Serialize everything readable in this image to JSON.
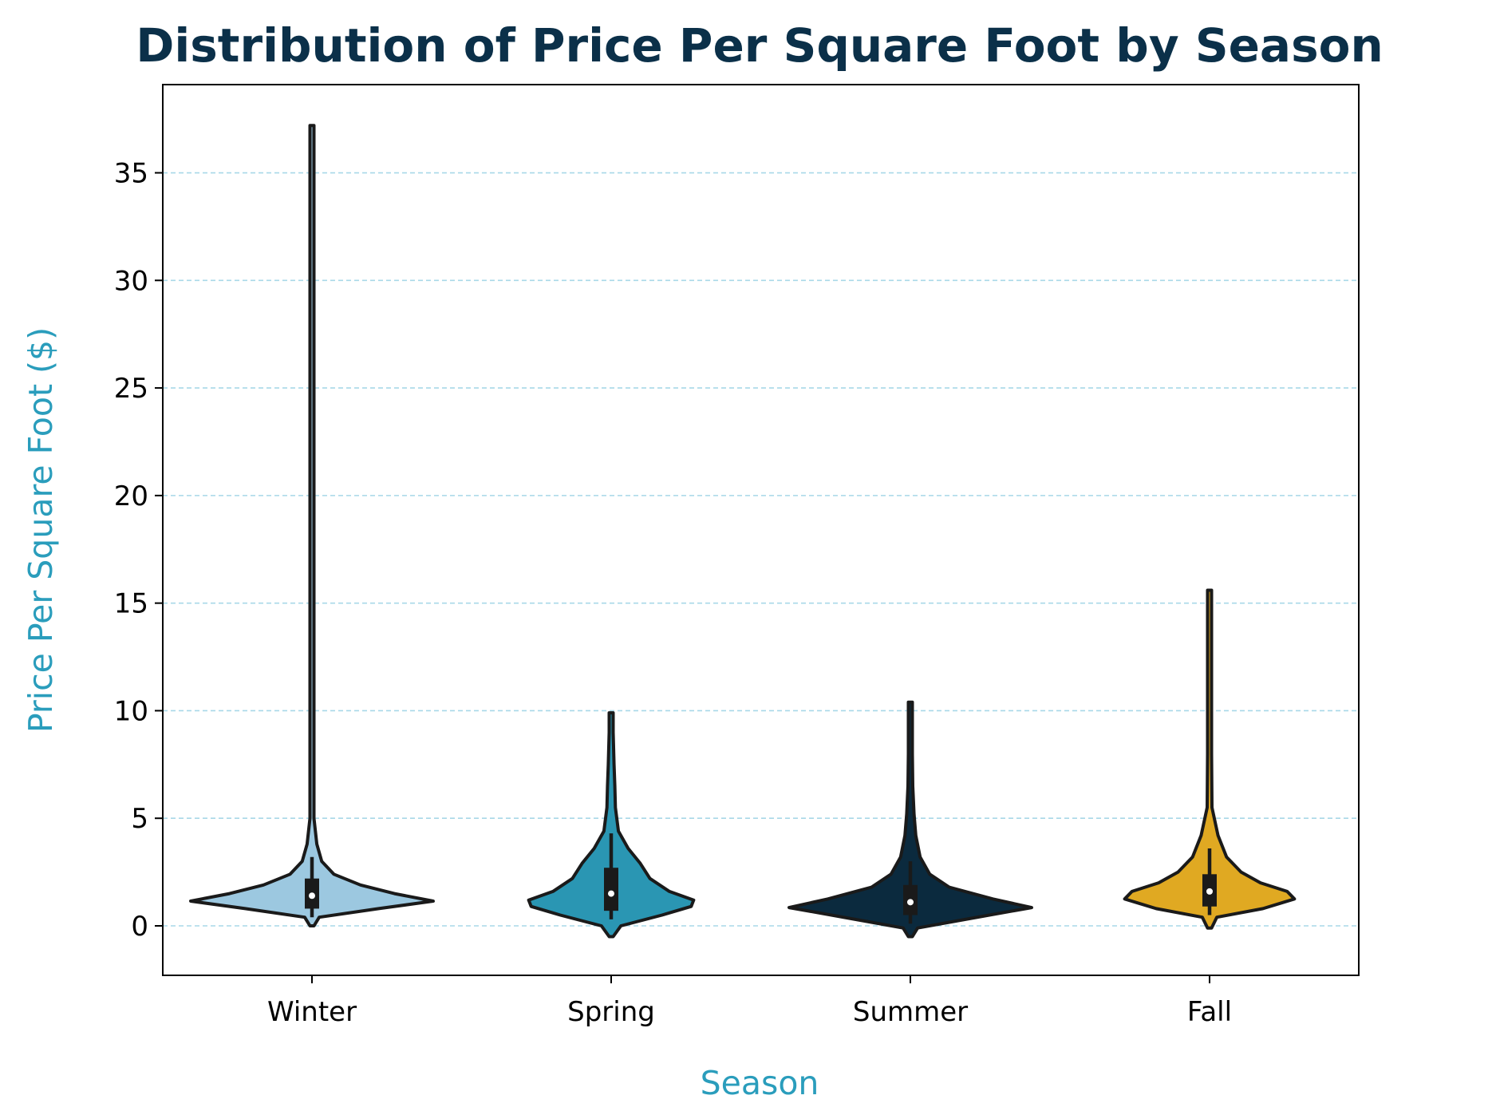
{
  "chart_data": {
    "type": "violin",
    "title": "Distribution of Price Per Square Foot by Season",
    "xlabel": "Season",
    "ylabel": "Price Per Square Foot ($)",
    "categories": [
      "Winter",
      "Spring",
      "Summer",
      "Fall"
    ],
    "ylim": [
      -2.3,
      39.1
    ],
    "yticks": [
      0,
      5,
      10,
      15,
      20,
      25,
      30,
      35
    ],
    "grid": "y, dashed",
    "colors": {
      "title": "#0B3049",
      "axis_label": "#2A9DBC",
      "grid": "#A8D8E8",
      "outline": "#1A1A1A"
    },
    "series": [
      {
        "name": "Winter",
        "color": "#9CC8E0",
        "min": 0.0,
        "max": 37.2,
        "q1": 0.8,
        "median": 1.4,
        "q3": 2.2,
        "whisker_low": 0.4,
        "whisker_high": 3.2,
        "density": [
          [
            0.0,
            0.0
          ],
          [
            0.4,
            0.06
          ],
          [
            0.8,
            0.55
          ],
          [
            1.15,
            1.0
          ],
          [
            1.5,
            0.68
          ],
          [
            1.9,
            0.4
          ],
          [
            2.4,
            0.18
          ],
          [
            3.0,
            0.08
          ],
          [
            3.8,
            0.04
          ],
          [
            5.0,
            0.015
          ],
          [
            7.0,
            0.008
          ],
          [
            12.0,
            0.007
          ],
          [
            20.0,
            0.006
          ],
          [
            30.0,
            0.006
          ],
          [
            37.2,
            0.004
          ]
        ]
      },
      {
        "name": "Spring",
        "color": "#2A96B3",
        "min": -0.5,
        "max": 9.9,
        "q1": 0.7,
        "median": 1.5,
        "q3": 2.7,
        "whisker_low": 0.3,
        "whisker_high": 4.3,
        "density": [
          [
            -0.5,
            0.0
          ],
          [
            0.0,
            0.08
          ],
          [
            0.5,
            0.42
          ],
          [
            0.9,
            0.66
          ],
          [
            1.2,
            0.68
          ],
          [
            1.6,
            0.48
          ],
          [
            2.2,
            0.32
          ],
          [
            2.9,
            0.24
          ],
          [
            3.6,
            0.14
          ],
          [
            4.4,
            0.06
          ],
          [
            5.5,
            0.035
          ],
          [
            6.5,
            0.03
          ],
          [
            7.5,
            0.024
          ],
          [
            9.0,
            0.014
          ],
          [
            9.9,
            0.006
          ]
        ]
      },
      {
        "name": "Summer",
        "color": "#0B2A3E",
        "min": -0.5,
        "max": 10.4,
        "q1": 0.5,
        "median": 1.1,
        "q3": 1.9,
        "whisker_low": 0.1,
        "whisker_high": 3.0,
        "density": [
          [
            -0.5,
            0.0
          ],
          [
            -0.1,
            0.06
          ],
          [
            0.35,
            0.5
          ],
          [
            0.85,
            1.0
          ],
          [
            1.25,
            0.68
          ],
          [
            1.8,
            0.32
          ],
          [
            2.4,
            0.16
          ],
          [
            3.2,
            0.08
          ],
          [
            4.2,
            0.045
          ],
          [
            5.2,
            0.03
          ],
          [
            6.5,
            0.02
          ],
          [
            8.0,
            0.012
          ],
          [
            10.4,
            0.005
          ]
        ]
      },
      {
        "name": "Fall",
        "color": "#E0A922",
        "min": -0.1,
        "max": 15.6,
        "q1": 0.9,
        "median": 1.6,
        "q3": 2.4,
        "whisker_low": 0.5,
        "whisker_high": 3.6,
        "density": [
          [
            -0.1,
            0.0
          ],
          [
            0.4,
            0.06
          ],
          [
            0.8,
            0.44
          ],
          [
            1.25,
            0.7
          ],
          [
            1.6,
            0.64
          ],
          [
            2.0,
            0.42
          ],
          [
            2.5,
            0.26
          ],
          [
            3.2,
            0.14
          ],
          [
            4.2,
            0.07
          ],
          [
            5.5,
            0.02
          ],
          [
            8.0,
            0.01
          ],
          [
            12.0,
            0.008
          ],
          [
            15.6,
            0.004
          ]
        ]
      }
    ]
  }
}
